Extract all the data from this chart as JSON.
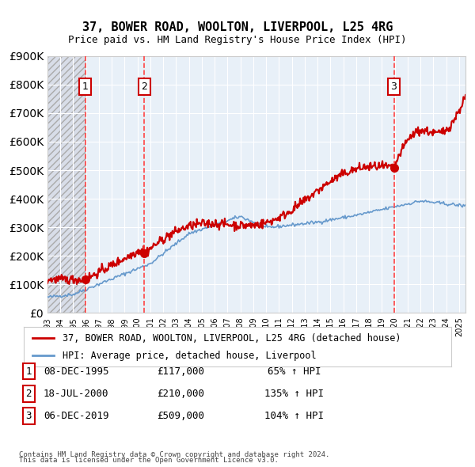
{
  "title": "37, BOWER ROAD, WOOLTON, LIVERPOOL, L25 4RG",
  "subtitle": "Price paid vs. HM Land Registry's House Price Index (HPI)",
  "legend_line1": "37, BOWER ROAD, WOOLTON, LIVERPOOL, L25 4RG (detached house)",
  "legend_line2": "HPI: Average price, detached house, Liverpool",
  "footer1": "Contains HM Land Registry data © Crown copyright and database right 2024.",
  "footer2": "This data is licensed under the Open Government Licence v3.0.",
  "table": [
    {
      "num": 1,
      "date": "08-DEC-1995",
      "price": "£117,000",
      "hpi": "65% ↑ HPI"
    },
    {
      "num": 2,
      "date": "18-JUL-2000",
      "price": "£210,000",
      "hpi": "135% ↑ HPI"
    },
    {
      "num": 3,
      "date": "06-DEC-2019",
      "price": "£509,000",
      "hpi": "104% ↑ HPI"
    }
  ],
  "purchases": [
    {
      "date_num": 1995.94,
      "price": 117000,
      "label": "1"
    },
    {
      "date_num": 2000.54,
      "price": 210000,
      "label": "2"
    },
    {
      "date_num": 2019.93,
      "price": 509000,
      "label": "3"
    }
  ],
  "ylim": [
    0,
    900000
  ],
  "xlim_start": 1993.0,
  "xlim_end": 2025.5,
  "hatch_end": 1995.94,
  "price_color": "#cc0000",
  "hpi_color": "#6699cc",
  "vline_color": "#ff4444",
  "bg_color": "#ffffff",
  "plot_bg": "#e8f0f8",
  "hatch_bg": "#d8dde8"
}
